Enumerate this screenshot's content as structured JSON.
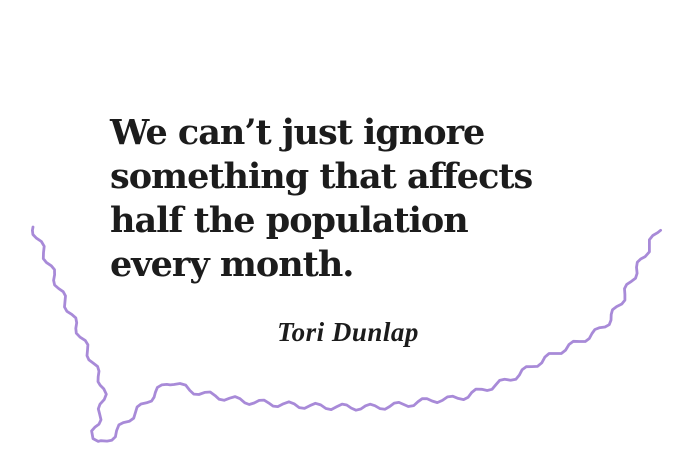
{
  "colors": {
    "background": "#ffffff",
    "text": "#1c1c1c",
    "accent_purple": "#a88ad8"
  },
  "quote": {
    "lines": [
      "We can’t just ignore",
      "something that affects",
      "half the population",
      "every month."
    ],
    "full_text": "We can’t just ignore something that affects half the population every month.",
    "attribution": "Tori Dunlap"
  },
  "decoration": {
    "name": "speech-bubble-squiggle",
    "description": "hand-drawn wavy purple line forming the open bottom of a speech bubble with a tail pointing down-left",
    "color": "#a88ad8",
    "stroke_width": 2.8
  }
}
